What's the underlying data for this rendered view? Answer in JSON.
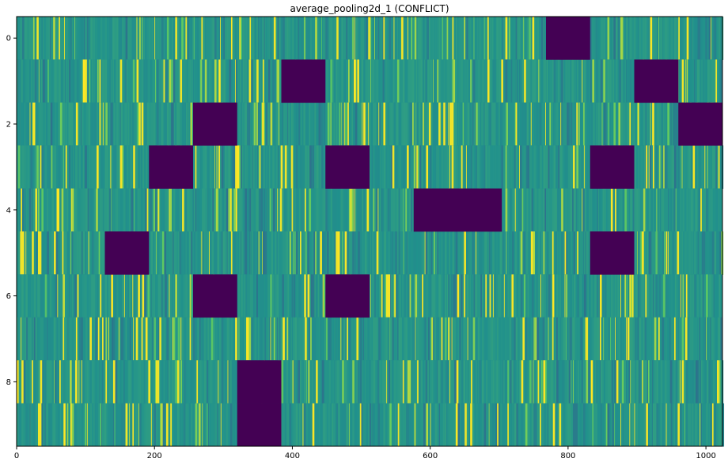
{
  "chart_data": {
    "type": "heatmap",
    "title": "average_pooling2d_1 (CONFLICT)",
    "xlabel": "",
    "ylabel": "",
    "xlim": [
      0,
      1024
    ],
    "ylim": [
      -0.5,
      9.5
    ],
    "x_ticks": [
      0,
      200,
      400,
      600,
      800,
      1000
    ],
    "y_ticks": [
      0,
      2,
      4,
      6,
      8
    ],
    "n_rows": 10,
    "n_cols": 1024,
    "colormap": "viridis",
    "colors": {
      "low": "#440154",
      "mid": "#21918c",
      "high": "#fde725"
    },
    "dark_blocks": [
      {
        "row": 0,
        "x_start": 768,
        "x_end": 832
      },
      {
        "row": 1,
        "x_start": 384,
        "x_end": 448
      },
      {
        "row": 1,
        "x_start": 896,
        "x_end": 960
      },
      {
        "row": 2,
        "x_start": 256,
        "x_end": 320
      },
      {
        "row": 2,
        "x_start": 960,
        "x_end": 1024
      },
      {
        "row": 3,
        "x_start": 192,
        "x_end": 256
      },
      {
        "row": 3,
        "x_start": 448,
        "x_end": 512
      },
      {
        "row": 3,
        "x_start": 832,
        "x_end": 896
      },
      {
        "row": 4,
        "x_start": 576,
        "x_end": 704
      },
      {
        "row": 5,
        "x_start": 128,
        "x_end": 192
      },
      {
        "row": 5,
        "x_start": 832,
        "x_end": 896
      },
      {
        "row": 6,
        "x_start": 256,
        "x_end": 320
      },
      {
        "row": 6,
        "x_start": 448,
        "x_end": 512
      },
      {
        "row": 8,
        "x_start": 320,
        "x_end": 384
      },
      {
        "row": 9,
        "x_start": 320,
        "x_end": 384
      }
    ]
  }
}
